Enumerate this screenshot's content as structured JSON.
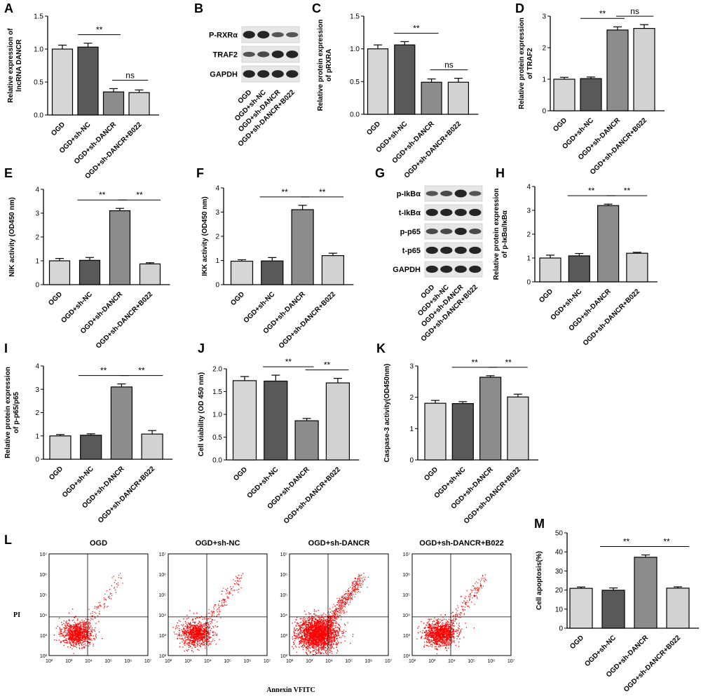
{
  "figure": {
    "categories": [
      "OGD",
      "OGD+sh-NC",
      "OGD+sh-DANCR",
      "OGD+sh-DANCR+B022"
    ],
    "bar_colors": [
      "#d6d6d6",
      "#595959",
      "#8c8c8c",
      "#d2d2d2"
    ]
  },
  "chart_data": [
    {
      "id": "A",
      "type": "bar",
      "ylabel": "Relative expression of lncRNA DANCR",
      "categories": [
        "OGD",
        "OGD+sh-NC",
        "OGD+sh-DANCR",
        "OGD+sh-DANCR+B022"
      ],
      "values": [
        1.0,
        1.03,
        0.35,
        0.34
      ],
      "errors": [
        0.06,
        0.06,
        0.05,
        0.04
      ],
      "ylim": [
        0,
        1.5
      ],
      "yticks": [
        "0.0",
        "0.5",
        "1.0",
        "1.5"
      ],
      "sig": [
        {
          "from": 1,
          "to": 2,
          "label": "**"
        },
        {
          "from": 2,
          "to": 3,
          "label": "ns"
        }
      ]
    },
    {
      "id": "C",
      "type": "bar",
      "ylabel": "Relative protein expression of pRXRA",
      "categories": [
        "OGD",
        "OGD+sh-NC",
        "OGD+sh-DANCR",
        "OGD+sh-DANCR+B022"
      ],
      "values": [
        1.0,
        1.06,
        0.49,
        0.49
      ],
      "errors": [
        0.06,
        0.05,
        0.05,
        0.06
      ],
      "ylim": [
        0,
        1.5
      ],
      "yticks": [
        "0.0",
        "0.5",
        "1.0",
        "1.5"
      ],
      "sig": [
        {
          "from": 1,
          "to": 2,
          "label": "**"
        },
        {
          "from": 2,
          "to": 3,
          "label": "ns"
        }
      ]
    },
    {
      "id": "D",
      "type": "bar",
      "ylabel": "Relative protein expression of TRAF2",
      "categories": [
        "OGD",
        "OGD+sh-NC",
        "OGD+sh-DANCR",
        "OGD+sh-DANCR+B022"
      ],
      "values": [
        1.0,
        1.02,
        2.56,
        2.61
      ],
      "errors": [
        0.06,
        0.05,
        0.1,
        0.12
      ],
      "ylim": [
        0,
        3
      ],
      "yticks": [
        "0",
        "1",
        "2",
        "3"
      ],
      "sig": [
        {
          "from": 1,
          "to": 2,
          "label": "**"
        },
        {
          "from": 2,
          "to": 3,
          "label": "ns"
        }
      ]
    },
    {
      "id": "E",
      "type": "bar",
      "ylabel": "NIK activity (OD450 nm)",
      "categories": [
        "OGD",
        "OGD+sh-NC",
        "OGD+sh-DANCR",
        "OGD+sh-DANCR+B022"
      ],
      "values": [
        1.0,
        1.02,
        3.1,
        0.87
      ],
      "errors": [
        0.1,
        0.12,
        0.1,
        0.05
      ],
      "ylim": [
        0,
        4
      ],
      "yticks": [
        "0",
        "1",
        "2",
        "3",
        "4"
      ],
      "sig": [
        {
          "from": 1,
          "to": 2,
          "label": "**"
        },
        {
          "from": 2,
          "to": 3,
          "label": "**"
        }
      ]
    },
    {
      "id": "F",
      "type": "bar",
      "ylabel": "IKK activity (OD450 nm)",
      "categories": [
        "OGD",
        "OGD+sh-NC",
        "OGD+sh-DANCR",
        "OGD+sh-DANCR+B022"
      ],
      "values": [
        0.97,
        0.98,
        3.1,
        1.2
      ],
      "errors": [
        0.06,
        0.14,
        0.18,
        0.1
      ],
      "ylim": [
        0,
        4
      ],
      "yticks": [
        "0",
        "1",
        "2",
        "3",
        "4"
      ],
      "sig": [
        {
          "from": 1,
          "to": 2,
          "label": "**"
        },
        {
          "from": 2,
          "to": 3,
          "label": "**"
        }
      ]
    },
    {
      "id": "H",
      "type": "bar",
      "ylabel": "Relative protein expression of p-IκBα/IκBα",
      "categories": [
        "OGD",
        "OGD+sh-NC",
        "OGD+sh-DANCR",
        "OGD+sh-DANCR+B022"
      ],
      "values": [
        1.0,
        1.09,
        3.2,
        1.2
      ],
      "errors": [
        0.12,
        0.1,
        0.06,
        0.04
      ],
      "ylim": [
        0,
        4
      ],
      "yticks": [
        "0",
        "1",
        "2",
        "3",
        "4"
      ],
      "sig": [
        {
          "from": 1,
          "to": 2,
          "label": "**"
        },
        {
          "from": 2,
          "to": 3,
          "label": "**"
        }
      ]
    },
    {
      "id": "I",
      "type": "bar",
      "ylabel": "Relative protein expression of p-p65/p65",
      "categories": [
        "OGD",
        "OGD+sh-NC",
        "OGD+sh-DANCR",
        "OGD+sh-DANCR+B022"
      ],
      "values": [
        1.0,
        1.03,
        3.1,
        1.08
      ],
      "errors": [
        0.06,
        0.06,
        0.13,
        0.15
      ],
      "ylim": [
        0,
        4
      ],
      "yticks": [
        "0",
        "1",
        "2",
        "3",
        "4"
      ],
      "sig": [
        {
          "from": 1,
          "to": 2,
          "label": "**"
        },
        {
          "from": 2,
          "to": 3,
          "label": "**"
        }
      ]
    },
    {
      "id": "J",
      "type": "bar",
      "ylabel": "Cell viability (OD 450 nm)",
      "categories": [
        "OGD",
        "OGD+sh-NC",
        "OGD+sh-DANCR",
        "OGD+sh-DANCR+B022"
      ],
      "values": [
        1.74,
        1.73,
        0.86,
        1.69
      ],
      "errors": [
        0.09,
        0.13,
        0.05,
        0.1
      ],
      "ylim": [
        0,
        2
      ],
      "yticks": [
        "0.0",
        "0.5",
        "1.0",
        "1.5",
        "2.0"
      ],
      "sig": [
        {
          "from": 1,
          "to": 2,
          "label": "**"
        },
        {
          "from": 2,
          "to": 3,
          "label": "**"
        }
      ]
    },
    {
      "id": "K",
      "type": "bar",
      "ylabel": "Caspase-3 activity(OD450nm)",
      "categories": [
        "OGD",
        "OGD+sh-NC",
        "OGD+sh-DANCR",
        "OGD+sh-DANCR+B022"
      ],
      "values": [
        1.81,
        1.8,
        2.64,
        2.01
      ],
      "errors": [
        0.09,
        0.06,
        0.05,
        0.09
      ],
      "ylim": [
        0,
        3
      ],
      "yticks": [
        "0",
        "1",
        "2",
        "3"
      ],
      "sig": [
        {
          "from": 1,
          "to": 2,
          "label": "**"
        },
        {
          "from": 2,
          "to": 3,
          "label": "**"
        }
      ]
    },
    {
      "id": "M",
      "type": "bar",
      "ylabel": "Cell apoptosis(%)",
      "categories": [
        "OGD",
        "OGD+sh-NC",
        "OGD+sh-DANCR",
        "OGD+sh-DANCR+B022"
      ],
      "values": [
        20.9,
        19.9,
        37.2,
        21.0
      ],
      "errors": [
        0.7,
        1.2,
        1.2,
        0.7
      ],
      "ylim": [
        0,
        50
      ],
      "yticks": [
        "0",
        "10",
        "20",
        "30",
        "40",
        "50"
      ],
      "sig": [
        {
          "from": 1,
          "to": 2,
          "label": "**"
        },
        {
          "from": 2,
          "to": 3,
          "label": "**"
        }
      ]
    }
  ],
  "blots": {
    "B": {
      "labels": [
        "P-RXRα",
        "TRAF2",
        "GAPDH"
      ]
    },
    "G": {
      "labels": [
        "p-IkBα",
        "t-IkBα",
        "p-p65",
        "t-p65",
        "GAPDH"
      ]
    }
  },
  "panel_letters": {
    "A": "A",
    "B": "B",
    "C": "C",
    "D": "D",
    "E": "E",
    "F": "F",
    "G": "G",
    "H": "H",
    "I": "I",
    "J": "J",
    "K": "K",
    "L": "L",
    "M": "M"
  },
  "flow": {
    "titles": [
      "OGD",
      "OGD+sh-NC",
      "OGD+sh-DANCR",
      "OGD+sh-DANCR+B022"
    ],
    "ylabel": "PI",
    "xlabel": "Annexin VFITC",
    "xticks": [
      "10²",
      "10³",
      "10⁴",
      "10⁵",
      "10⁶",
      "10⁷"
    ],
    "yticks": [
      "10⁷",
      "10⁶",
      "10⁵",
      "10⁴",
      "10³",
      "10²"
    ],
    "dot_color": "#ff0000"
  }
}
